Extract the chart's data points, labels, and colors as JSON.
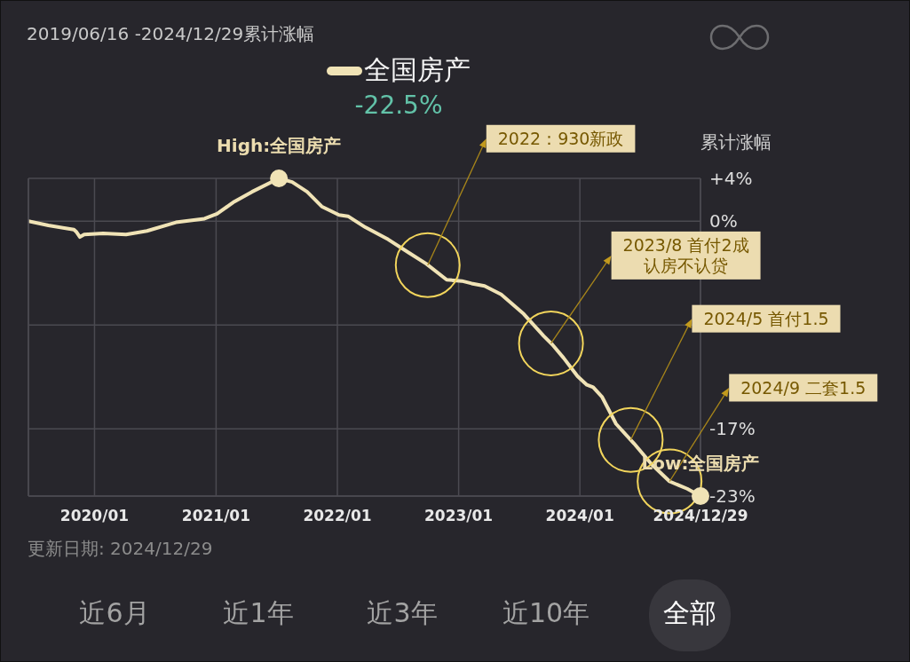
{
  "chart_data": {
    "type": "line",
    "title": "2019/06/16 -2024/12/29累计涨幅",
    "ylabel": "累计涨幅",
    "x": [
      "2019-06-16",
      "2019-08-15",
      "2019-10-31",
      "2019-11-08",
      "2019-11-18",
      "2019-12-01",
      "2020-01-27",
      "2020-04-05",
      "2020-06-07",
      "2020-09-02",
      "2020-11-27",
      "2021-01-04",
      "2021-02-25",
      "2021-04-19",
      "2021-07-09",
      "2021-08-18",
      "2021-10-02",
      "2021-11-15",
      "2022-01-06",
      "2022-02-02",
      "2022-03-26",
      "2022-06-03",
      "2022-08-05",
      "2022-09-26",
      "2022-11-26",
      "2023-01-11",
      "2023-02-09",
      "2023-03-20",
      "2023-05-09",
      "2023-07-16",
      "2023-09-14",
      "2023-10-10",
      "2023-11-13",
      "2023-12-25",
      "2024-01-22",
      "2024-02-10",
      "2024-03-08",
      "2024-04-19",
      "2024-06-12",
      "2024-08-04",
      "2024-09-27",
      "2024-11-19",
      "2024-12-29"
    ],
    "series": [
      {
        "name": "全国房产",
        "color": "#f0e3b6",
        "values": [
          0,
          -0.35,
          -0.7,
          -0.9,
          -1.3,
          -1.1,
          -1.0,
          -1.1,
          -0.8,
          -0.1,
          0.2,
          0.6,
          1.6,
          2.4,
          3.5,
          3.2,
          2.4,
          1.2,
          0.5,
          0.4,
          -0.5,
          -1.5,
          -2.6,
          -3.5,
          -4.8,
          -4.9,
          -5.1,
          -5.3,
          -6.0,
          -7.6,
          -9.4,
          -10.1,
          -11.2,
          -12.7,
          -13.4,
          -13.6,
          -14.4,
          -16.6,
          -18.2,
          -19.9,
          -21.3,
          -21.9,
          -22.5
        ]
      }
    ],
    "xlim": [
      "2019-06-16",
      "2024-12-29"
    ],
    "xticks": [
      {
        "value": "2020-01",
        "label": "2020/01"
      },
      {
        "value": "2021-01",
        "label": "2021/01"
      },
      {
        "value": "2022-01",
        "label": "2022/01"
      },
      {
        "value": "2023-01",
        "label": "2023/01"
      },
      {
        "value": "2024-01",
        "label": "2024/01"
      },
      {
        "value": "2024-12-29",
        "label": "2024/12/29"
      }
    ],
    "ylim": [
      -22.5,
      3.5
    ],
    "yticks": [
      {
        "value": 3.5,
        "label": "+4%"
      },
      {
        "value": 0,
        "label": "0%"
      },
      {
        "value": -8.5,
        "label": null
      },
      {
        "value": -17,
        "label": "-17%"
      },
      {
        "value": -22.5,
        "label": "-23%"
      }
    ],
    "grid": true,
    "legend": "top",
    "line_style": "solid",
    "annotations": [
      {
        "text": "High:全国房产",
        "x": "2021-07-09",
        "y": 3.5
      },
      {
        "text": "Low:全国房产",
        "x": "2024-12-29",
        "y": -22.5
      },
      {
        "text": "2022：930新政",
        "x": "2022-09-30",
        "y": -3.6
      },
      {
        "text": "2023/8 首付2成认房不认贷",
        "x": "2023-10-06",
        "y": -10.0
      },
      {
        "text": "2024/5 首付1.5",
        "x": "2024-06-02",
        "y": -17.9
      },
      {
        "text": "2024/9 二套1.5",
        "x": "2024-09-27",
        "y": -21.3
      },
      "-22.5%",
      "更新日期: 2024/12/29",
      "近6月",
      "近1年",
      "近3年",
      "近10年",
      "全部"
    ]
  }
}
